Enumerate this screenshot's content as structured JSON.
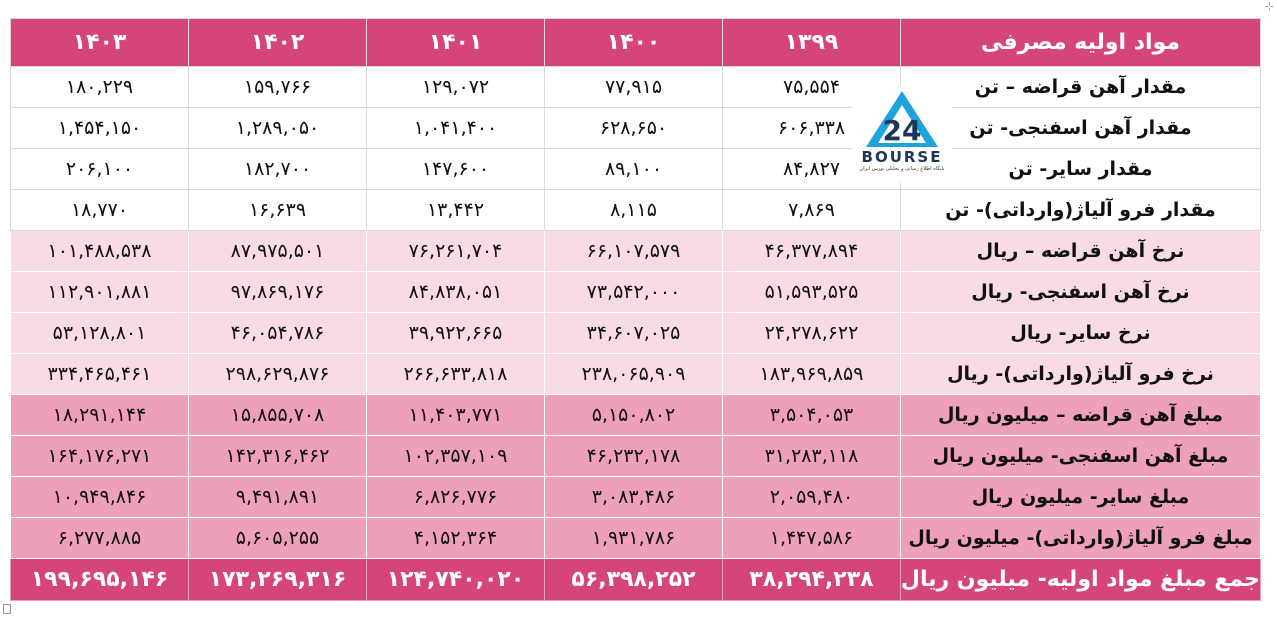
{
  "table": {
    "header": [
      "مواد اولیه مصرفی",
      "۱۳۹۹",
      "۱۴۰۰",
      "۱۴۰۱",
      "۱۴۰۲",
      "۱۴۰۳"
    ],
    "rows": [
      {
        "label": "مقدار آهن قراضه – تن",
        "values": [
          "۷۵,۵۵۴",
          "۷۷,۹۱۵",
          "۱۲۹,۰۷۲",
          "۱۵۹,۷۶۶",
          "۱۸۰,۲۲۹"
        ]
      },
      {
        "label": "مقدار آهن اسفنجی- تن",
        "values": [
          "۶۰۶,۳۳۸",
          "۶۲۸,۶۵۰",
          "۱,۰۴۱,۴۰۰",
          "۱,۲۸۹,۰۵۰",
          "۱,۴۵۴,۱۵۰"
        ]
      },
      {
        "label": "مقدار سایر- تن",
        "values": [
          "۸۴,۸۲۷",
          "۸۹,۱۰۰",
          "۱۴۷,۶۰۰",
          "۱۸۲,۷۰۰",
          "۲۰۶,۱۰۰"
        ]
      },
      {
        "label": "مقدار فرو آلیاژ(وارداتی)- تن",
        "values": [
          "۷,۸۶۹",
          "۸,۱۱۵",
          "۱۳,۴۴۲",
          "۱۶,۶۳۹",
          "۱۸,۷۷۰"
        ]
      },
      {
        "label": "نرخ آهن قراضه – ریال",
        "values": [
          "۴۶,۳۷۷,۸۹۴",
          "۶۶,۱۰۷,۵۷۹",
          "۷۶,۲۶۱,۷۰۴",
          "۸۷,۹۷۵,۵۰۱",
          "۱۰۱,۴۸۸,۵۳۸"
        ]
      },
      {
        "label": "نرخ آهن اسفنجی- ریال",
        "values": [
          "۵۱,۵۹۳,۵۲۵",
          "۷۳,۵۴۲,۰۰۰",
          "۸۴,۸۳۸,۰۵۱",
          "۹۷,۸۶۹,۱۷۶",
          "۱۱۲,۹۰۱,۸۸۱"
        ]
      },
      {
        "label": "نرخ سایر- ریال",
        "values": [
          "۲۴,۲۷۸,۶۲۲",
          "۳۴,۶۰۷,۰۲۵",
          "۳۹,۹۲۲,۶۶۵",
          "۴۶,۰۵۴,۷۸۶",
          "۵۳,۱۲۸,۸۰۱"
        ]
      },
      {
        "label": "نرخ فرو آلیاژ(وارداتی)- ریال",
        "values": [
          "۱۸۳,۹۶۹,۸۵۹",
          "۲۳۸,۰۶۵,۹۰۹",
          "۲۶۶,۶۳۳,۸۱۸",
          "۲۹۸,۶۲۹,۸۷۶",
          "۳۳۴,۴۶۵,۴۶۱"
        ]
      },
      {
        "label": "مبلغ آهن قراضه – میلیون ریال",
        "values": [
          "۳,۵۰۴,۰۵۳",
          "۵,۱۵۰,۸۰۲",
          "۱۱,۴۰۳,۷۷۱",
          "۱۵,۸۵۵,۷۰۸",
          "۱۸,۲۹۱,۱۴۴"
        ]
      },
      {
        "label": "مبلغ آهن اسفنجی- میلیون ریال",
        "values": [
          "۳۱,۲۸۳,۱۱۸",
          "۴۶,۲۳۲,۱۷۸",
          "۱۰۲,۳۵۷,۱۰۹",
          "۱۴۲,۳۱۶,۴۶۲",
          "۱۶۴,۱۷۶,۲۷۱"
        ]
      },
      {
        "label": "مبلغ سایر- میلیون ریال",
        "values": [
          "۲,۰۵۹,۴۸۰",
          "۳,۰۸۳,۴۸۶",
          "۶,۸۲۶,۷۷۶",
          "۹,۴۹۱,۸۹۱",
          "۱۰,۹۴۹,۸۴۶"
        ]
      },
      {
        "label": "مبلغ فرو آلیاژ(وارداتی)- میلیون ریال",
        "values": [
          "۱,۴۴۷,۵۸۶",
          "۱,۹۳۱,۷۸۶",
          "۴,۱۵۲,۳۶۴",
          "۵,۶۰۵,۲۵۵",
          "۶,۲۷۷,۸۸۵"
        ]
      }
    ],
    "total": {
      "label": "جمع مبلغ مواد اولیه- میلیون ریال",
      "values": [
        "۳۸,۲۹۴,۲۳۸",
        "۵۶,۳۹۸,۲۵۲",
        "۱۲۴,۷۴۰,۰۲۰",
        "۱۷۳,۲۶۹,۳۱۶",
        "۱۹۹,۶۹۵,۱۴۶"
      ]
    }
  },
  "logo": {
    "number": "24",
    "text": "BOURSE",
    "subtitle": "پایگاه اطلاع رسانی و تحلیلی بورس ایران"
  },
  "window": {
    "corner_glyph": "⊹"
  },
  "colors": {
    "header_bg": "#d6457a",
    "rate_bg": "#f8dbe6",
    "amount_bg": "#ee9fbc",
    "logo_blue": "#1fa3dc",
    "logo_dark": "#1d3557"
  }
}
